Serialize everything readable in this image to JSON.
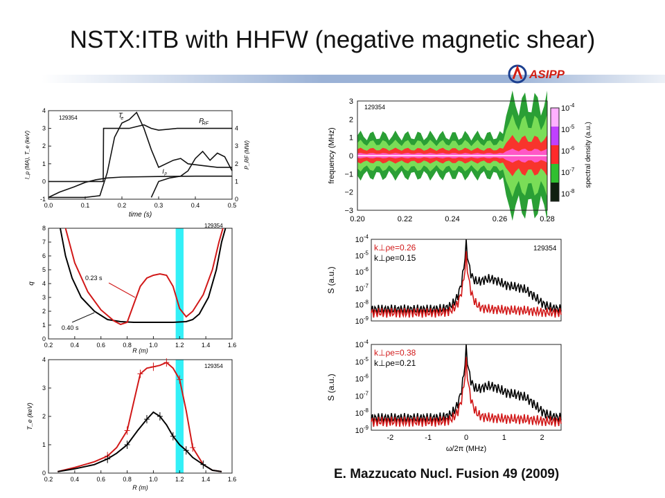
{
  "slide": {
    "title": "NSTX:ITB with HHFW (negative magnetic shear)",
    "logo_text": "ASIPP",
    "citation": "E. Mazzucato Nucl. Fusion 49 (2009)",
    "accent_bar_color": "#9bb2d6",
    "logo_color": "#d21e12"
  },
  "chart_data": [
    {
      "id": "time-traces",
      "type": "line",
      "shot": "129354",
      "xlabel": "time (s)",
      "ylabel_left": "I_p (MA), T_e (keV)",
      "ylabel_right": "P_RF (MW)",
      "xlim": [
        0.0,
        0.5
      ],
      "ylim": [
        -1,
        4
      ],
      "xticks": [
        "0.0",
        "0.1",
        "0.2",
        "0.3",
        "0.4",
        "0.5"
      ],
      "yticks": [
        "-1",
        "0",
        "1",
        "2",
        "3",
        "4"
      ],
      "series": [
        {
          "name": "T_e",
          "x": [
            0.0,
            0.05,
            0.1,
            0.14,
            0.16,
            0.18,
            0.2,
            0.22,
            0.24,
            0.26,
            0.28,
            0.3,
            0.34,
            0.36,
            0.38,
            0.42,
            0.46,
            0.5
          ],
          "y": [
            -0.9,
            -0.9,
            -0.9,
            -0.8,
            0.5,
            2.5,
            3.3,
            3.5,
            3.9,
            3.0,
            1.8,
            0.8,
            1.2,
            1.3,
            1.0,
            0.9,
            0.8,
            0.8
          ]
        },
        {
          "name": "P_RF",
          "x": [
            0.0,
            0.149,
            0.15,
            0.22,
            0.24,
            0.26,
            0.28,
            0.3,
            0.35,
            0.4,
            0.45,
            0.5
          ],
          "y": [
            0.0,
            0.0,
            3.0,
            3.0,
            3.1,
            3.2,
            3.0,
            2.9,
            3.0,
            3.0,
            3.0,
            3.0
          ]
        },
        {
          "name": "I_p",
          "x": [
            0.0,
            0.03,
            0.07,
            0.1,
            0.13,
            0.16,
            0.2,
            0.3,
            0.4,
            0.5
          ],
          "y": [
            -0.9,
            -0.6,
            -0.3,
            -0.05,
            0.1,
            0.2,
            0.25,
            0.28,
            0.3,
            0.3
          ]
        },
        {
          "name": "",
          "x": [
            0.28,
            0.3,
            0.33,
            0.36,
            0.38,
            0.4,
            0.42,
            0.44,
            0.46,
            0.48,
            0.5
          ],
          "y": [
            -0.9,
            0.0,
            0.2,
            0.3,
            0.6,
            1.3,
            1.7,
            1.2,
            1.6,
            1.4,
            0.6
          ]
        }
      ]
    },
    {
      "id": "q-profile",
      "type": "line",
      "shot": "129354",
      "xlabel": "R (m)",
      "ylabel": "q",
      "xlim": [
        0.2,
        1.6
      ],
      "ylim": [
        0,
        8
      ],
      "xticks": [
        "0.2",
        "0.4",
        "0.6",
        "0.8",
        "1.0",
        "1.2",
        "1.4",
        "1.6"
      ],
      "yticks": [
        "0",
        "1",
        "2",
        "3",
        "4",
        "5",
        "6",
        "7",
        "8"
      ],
      "highlight_band": [
        1.17,
        1.23
      ],
      "series": [
        {
          "name": "0.40 s",
          "color": "#000000",
          "x": [
            0.29,
            0.33,
            0.38,
            0.45,
            0.55,
            0.65,
            0.75,
            0.85,
            0.95,
            1.05,
            1.15,
            1.25,
            1.3,
            1.35,
            1.42,
            1.48,
            1.52,
            1.55
          ],
          "y": [
            8.0,
            6.0,
            4.4,
            3.0,
            2.0,
            1.4,
            1.25,
            1.2,
            1.2,
            1.2,
            1.2,
            1.25,
            1.4,
            1.8,
            3.0,
            5.0,
            7.0,
            8.0
          ]
        },
        {
          "name": "0.23 s",
          "color": "#d11818",
          "x": [
            0.33,
            0.4,
            0.5,
            0.6,
            0.7,
            0.75,
            0.8,
            0.85,
            0.9,
            0.95,
            1.0,
            1.05,
            1.1,
            1.15,
            1.2,
            1.25,
            1.3,
            1.38,
            1.45,
            1.5,
            1.53
          ],
          "y": [
            8.0,
            5.5,
            3.4,
            2.1,
            1.3,
            1.05,
            1.2,
            2.5,
            3.8,
            4.4,
            4.6,
            4.7,
            4.6,
            3.8,
            2.2,
            1.6,
            2.0,
            3.2,
            5.0,
            7.0,
            8.0
          ]
        }
      ],
      "annotations": [
        "0.23 s",
        "0.40 s"
      ]
    },
    {
      "id": "te-profile",
      "type": "line",
      "shot": "129354",
      "xlabel": "R (m)",
      "ylabel": "T_e (keV)",
      "xlim": [
        0.2,
        1.6
      ],
      "ylim": [
        0,
        4
      ],
      "xticks": [
        "0.2",
        "0.4",
        "0.6",
        "0.8",
        "1.0",
        "1.2",
        "1.4",
        "1.6"
      ],
      "yticks": [
        "0",
        "1",
        "2",
        "3",
        "4"
      ],
      "highlight_band": [
        1.17,
        1.23
      ],
      "series": [
        {
          "name": "",
          "color": "#d11818",
          "x": [
            0.27,
            0.4,
            0.55,
            0.65,
            0.72,
            0.8,
            0.85,
            0.9,
            0.95,
            1.0,
            1.05,
            1.1,
            1.15,
            1.2,
            1.25,
            1.3,
            1.38,
            1.45,
            1.52
          ],
          "y": [
            0.05,
            0.2,
            0.4,
            0.6,
            0.9,
            1.5,
            2.5,
            3.5,
            3.7,
            3.75,
            3.8,
            3.9,
            3.7,
            3.3,
            2.2,
            0.9,
            0.3,
            0.1,
            0.05
          ]
        },
        {
          "name": "",
          "color": "#000000",
          "x": [
            0.27,
            0.4,
            0.55,
            0.65,
            0.72,
            0.8,
            0.88,
            0.95,
            1.0,
            1.05,
            1.1,
            1.15,
            1.2,
            1.25,
            1.3,
            1.38,
            1.45,
            1.52
          ],
          "y": [
            0.05,
            0.15,
            0.3,
            0.5,
            0.7,
            1.0,
            1.5,
            1.9,
            2.15,
            2.0,
            1.7,
            1.3,
            1.0,
            0.8,
            0.55,
            0.3,
            0.1,
            0.05
          ]
        }
      ]
    },
    {
      "id": "spectrogram",
      "type": "heatmap",
      "shot": "129354",
      "xlabel": "",
      "ylabel": "frequency (MHz)",
      "colorbar_label": "spectral density (a.u.)",
      "colorbar_ticks": [
        "10^-4",
        "10^-5",
        "10^-6",
        "10^-7",
        "10^-8"
      ],
      "xlim": [
        0.2,
        0.28
      ],
      "ylim": [
        -3,
        3
      ],
      "xticks": [
        "0.20",
        "0.22",
        "0.24",
        "0.26",
        "0.28"
      ],
      "yticks": [
        "3",
        "2",
        "1",
        "0",
        "-1",
        "-2",
        "-3"
      ]
    },
    {
      "id": "spectrum-upper",
      "type": "line",
      "shot": "129354",
      "xlabel": "",
      "ylabel": "S (a.u.)",
      "yscale": "log",
      "xlim": [
        -2.5,
        2.5
      ],
      "ylim": [
        1e-09,
        0.0001
      ],
      "yticks": [
        "10^-4",
        "10^-5",
        "10^-6",
        "10^-7",
        "10^-8",
        "10^-9"
      ],
      "series": [
        {
          "name": "k⊥ρe=0.26",
          "color": "#d11818"
        },
        {
          "name": "k⊥ρe=0.15",
          "color": "#000000"
        }
      ]
    },
    {
      "id": "spectrum-lower",
      "type": "line",
      "xlabel": "ω/2π (MHz)",
      "ylabel": "S (a.u.)",
      "yscale": "log",
      "xlim": [
        -2.5,
        2.5
      ],
      "ylim": [
        1e-09,
        0.0001
      ],
      "xticks": [
        "-2",
        "-1",
        "0",
        "1",
        "2"
      ],
      "yticks": [
        "10^-4",
        "10^-5",
        "10^-6",
        "10^-7",
        "10^-8",
        "10^-9"
      ],
      "series": [
        {
          "name": "k⊥ρe=0.38",
          "color": "#d11818"
        },
        {
          "name": "k⊥ρe=0.21",
          "color": "#000000"
        }
      ]
    }
  ]
}
